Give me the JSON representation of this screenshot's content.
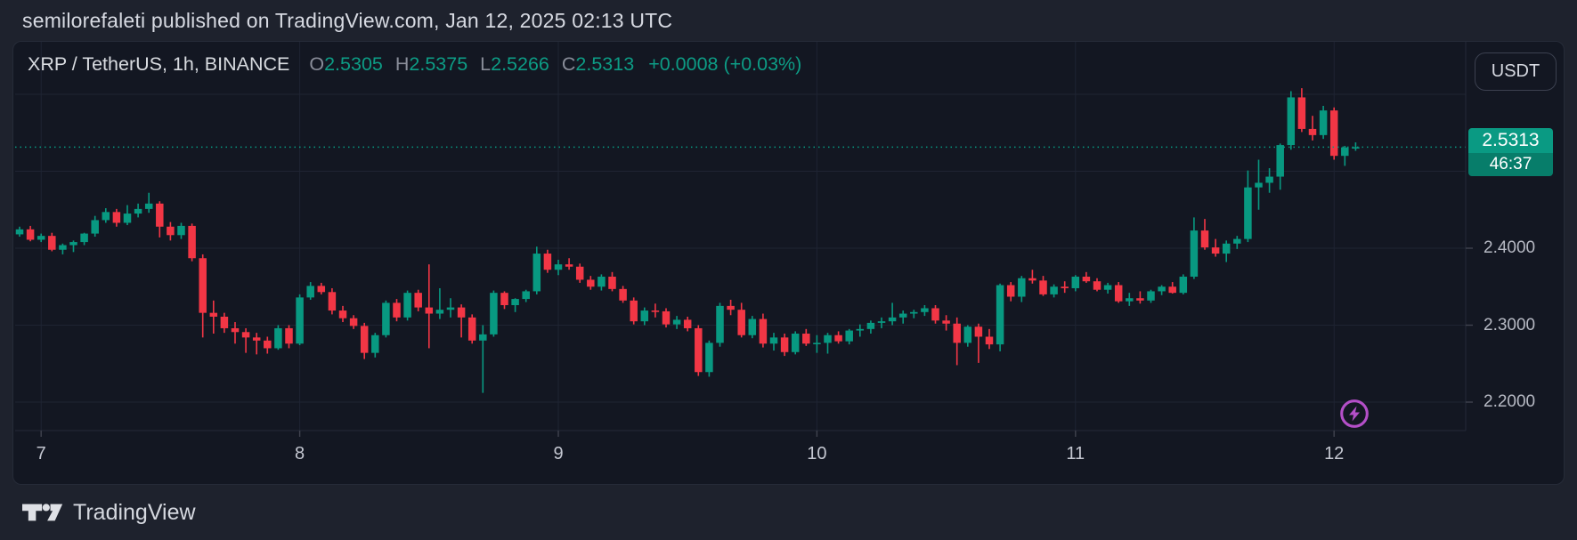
{
  "page": {
    "published_line": "semilorefaleti published on TradingView.com, Jan 12, 2025 02:13 UTC"
  },
  "chart": {
    "symbol_title": "XRP / TetherUS, 1h, BINANCE",
    "ohlc": {
      "o_label": "O",
      "o": "2.5305",
      "h_label": "H",
      "h": "2.5375",
      "l_label": "L",
      "l": "2.5266",
      "c_label": "C",
      "c": "2.5313",
      "change": "+0.0008 (+0.03%)"
    },
    "currency_button": "USDT",
    "badge": {
      "price": "2.5313",
      "countdown": "46:37"
    }
  },
  "footer": {
    "brand": "TradingView"
  },
  "colors": {
    "page_bg": "#1e222d",
    "chart_bg": "#131722",
    "up": "#089981",
    "down": "#f23645",
    "grid": "#1f2433",
    "dotted_price_line": "#089981",
    "badge_price_bg": "#0a9a83",
    "badge_countdown_bg": "#077d6a",
    "purple_icon": "#b44fc8",
    "axis_text": "#b6b9c3"
  },
  "chart_data": {
    "type": "candlestick",
    "title": "XRP / TetherUS, 1h, BINANCE",
    "exchange": "BINANCE",
    "interval": "1h",
    "last_price": 2.5313,
    "countdown": "46:37",
    "grid": true,
    "ylim": [
      2.19,
      2.63
    ],
    "y_ticks": [
      "2.4000",
      "2.3000",
      "2.2000"
    ],
    "y_tick_values": [
      2.4,
      2.3,
      2.2
    ],
    "x_axis_day_labels": [
      "7",
      "8",
      "9",
      "10",
      "11",
      "12"
    ],
    "day_start_indices": [
      2,
      26,
      50,
      74,
      98,
      122
    ],
    "candles": [
      [
        2.418,
        2.428,
        2.415,
        2.4245
      ],
      [
        2.4245,
        2.429,
        2.409,
        2.411
      ],
      [
        2.411,
        2.419,
        2.408,
        2.416
      ],
      [
        2.416,
        2.42,
        2.396,
        2.398
      ],
      [
        2.398,
        2.406,
        2.392,
        2.404
      ],
      [
        2.404,
        2.41,
        2.395,
        2.408
      ],
      [
        2.408,
        2.42,
        2.404,
        2.419
      ],
      [
        2.419,
        2.442,
        2.415,
        2.4365
      ],
      [
        2.4365,
        2.452,
        2.433,
        2.447
      ],
      [
        2.447,
        2.451,
        2.428,
        2.433
      ],
      [
        2.433,
        2.456,
        2.43,
        2.445
      ],
      [
        2.445,
        2.458,
        2.44,
        2.451
      ],
      [
        2.451,
        2.472,
        2.446,
        2.458
      ],
      [
        2.458,
        2.461,
        2.414,
        2.428
      ],
      [
        2.428,
        2.434,
        2.41,
        2.417
      ],
      [
        2.417,
        2.433,
        2.412,
        2.429
      ],
      [
        2.429,
        2.432,
        2.383,
        2.387
      ],
      [
        2.387,
        2.392,
        2.284,
        2.316
      ],
      [
        2.316,
        2.332,
        2.289,
        2.311
      ],
      [
        2.311,
        2.316,
        2.29,
        2.296
      ],
      [
        2.296,
        2.304,
        2.276,
        2.291
      ],
      [
        2.291,
        2.296,
        2.264,
        2.284
      ],
      [
        2.284,
        2.29,
        2.262,
        2.28
      ],
      [
        2.28,
        2.285,
        2.263,
        2.27
      ],
      [
        2.27,
        2.3,
        2.268,
        2.296
      ],
      [
        2.296,
        2.3,
        2.27,
        2.276
      ],
      [
        2.276,
        2.34,
        2.274,
        2.336
      ],
      [
        2.336,
        2.356,
        2.333,
        2.351
      ],
      [
        2.351,
        2.355,
        2.34,
        2.343
      ],
      [
        2.343,
        2.348,
        2.314,
        2.319
      ],
      [
        2.319,
        2.325,
        2.304,
        2.309
      ],
      [
        2.309,
        2.313,
        2.295,
        2.299
      ],
      [
        2.299,
        2.303,
        2.256,
        2.264
      ],
      [
        2.264,
        2.29,
        2.258,
        2.287
      ],
      [
        2.287,
        2.332,
        2.284,
        2.329
      ],
      [
        2.329,
        2.334,
        2.305,
        2.31
      ],
      [
        2.31,
        2.345,
        2.306,
        2.342
      ],
      [
        2.342,
        2.346,
        2.318,
        2.323
      ],
      [
        2.323,
        2.379,
        2.27,
        2.315
      ],
      [
        2.315,
        2.348,
        2.308,
        2.32
      ],
      [
        2.32,
        2.335,
        2.31,
        2.323
      ],
      [
        2.323,
        2.327,
        2.284,
        2.31
      ],
      [
        2.31,
        2.314,
        2.276,
        2.28
      ],
      [
        2.28,
        2.3,
        2.212,
        2.288
      ],
      [
        2.288,
        2.345,
        2.285,
        2.342
      ],
      [
        2.342,
        2.344,
        2.321,
        2.326
      ],
      [
        2.326,
        2.335,
        2.317,
        2.334
      ],
      [
        2.334,
        2.346,
        2.33,
        2.344
      ],
      [
        2.344,
        2.402,
        2.34,
        2.393
      ],
      [
        2.393,
        2.398,
        2.368,
        2.372
      ],
      [
        2.372,
        2.385,
        2.365,
        2.379
      ],
      [
        2.379,
        2.387,
        2.372,
        2.376
      ],
      [
        2.376,
        2.38,
        2.355,
        2.359
      ],
      [
        2.359,
        2.364,
        2.346,
        2.35
      ],
      [
        2.35,
        2.366,
        2.345,
        2.363
      ],
      [
        2.363,
        2.369,
        2.344,
        2.347
      ],
      [
        2.347,
        2.351,
        2.329,
        2.332
      ],
      [
        2.332,
        2.336,
        2.301,
        2.305
      ],
      [
        2.305,
        2.323,
        2.3,
        2.319
      ],
      [
        2.319,
        2.328,
        2.31,
        2.318
      ],
      [
        2.318,
        2.322,
        2.297,
        2.301
      ],
      [
        2.301,
        2.312,
        2.295,
        2.307
      ],
      [
        2.307,
        2.311,
        2.292,
        2.296
      ],
      [
        2.296,
        2.3,
        2.234,
        2.239
      ],
      [
        2.239,
        2.28,
        2.233,
        2.277
      ],
      [
        2.277,
        2.329,
        2.272,
        2.325
      ],
      [
        2.325,
        2.333,
        2.313,
        2.32
      ],
      [
        2.32,
        2.329,
        2.284,
        2.287
      ],
      [
        2.287,
        2.312,
        2.283,
        2.308
      ],
      [
        2.308,
        2.315,
        2.271,
        2.276
      ],
      [
        2.276,
        2.29,
        2.267,
        2.284
      ],
      [
        2.284,
        2.289,
        2.26,
        2.265
      ],
      [
        2.265,
        2.292,
        2.262,
        2.289
      ],
      [
        2.289,
        2.295,
        2.273,
        2.276
      ],
      [
        2.276,
        2.287,
        2.264,
        2.277
      ],
      [
        2.277,
        2.29,
        2.263,
        2.287
      ],
      [
        2.287,
        2.292,
        2.276,
        2.279
      ],
      [
        2.279,
        2.295,
        2.275,
        2.293
      ],
      [
        2.293,
        2.301,
        2.285,
        2.295
      ],
      [
        2.295,
        2.306,
        2.289,
        2.303
      ],
      [
        2.303,
        2.31,
        2.296,
        2.305
      ],
      [
        2.305,
        2.329,
        2.3,
        2.31
      ],
      [
        2.31,
        2.319,
        2.302,
        2.315
      ],
      [
        2.315,
        2.32,
        2.309,
        2.317
      ],
      [
        2.317,
        2.326,
        2.312,
        2.322
      ],
      [
        2.322,
        2.326,
        2.302,
        2.306
      ],
      [
        2.306,
        2.313,
        2.293,
        2.302
      ],
      [
        2.302,
        2.31,
        2.248,
        2.277
      ],
      [
        2.277,
        2.3,
        2.272,
        2.298
      ],
      [
        2.298,
        2.302,
        2.251,
        2.285
      ],
      [
        2.285,
        2.295,
        2.269,
        2.275
      ],
      [
        2.275,
        2.354,
        2.266,
        2.352
      ],
      [
        2.352,
        2.356,
        2.331,
        2.337
      ],
      [
        2.337,
        2.364,
        2.33,
        2.361
      ],
      [
        2.361,
        2.372,
        2.354,
        2.358
      ],
      [
        2.358,
        2.364,
        2.338,
        2.34
      ],
      [
        2.34,
        2.353,
        2.336,
        2.35
      ],
      [
        2.35,
        2.357,
        2.342,
        2.348
      ],
      [
        2.348,
        2.365,
        2.344,
        2.363
      ],
      [
        2.363,
        2.369,
        2.355,
        2.357
      ],
      [
        2.357,
        2.361,
        2.344,
        2.346
      ],
      [
        2.346,
        2.355,
        2.341,
        2.352
      ],
      [
        2.352,
        2.356,
        2.329,
        2.331
      ],
      [
        2.331,
        2.342,
        2.325,
        2.335
      ],
      [
        2.335,
        2.344,
        2.328,
        2.332
      ],
      [
        2.332,
        2.346,
        2.329,
        2.344
      ],
      [
        2.344,
        2.352,
        2.339,
        2.35
      ],
      [
        2.35,
        2.356,
        2.341,
        2.342
      ],
      [
        2.342,
        2.366,
        2.34,
        2.363
      ],
      [
        2.363,
        2.44,
        2.36,
        2.423
      ],
      [
        2.423,
        2.438,
        2.398,
        2.401
      ],
      [
        2.401,
        2.412,
        2.389,
        2.393
      ],
      [
        2.393,
        2.41,
        2.382,
        2.406
      ],
      [
        2.406,
        2.416,
        2.399,
        2.412
      ],
      [
        2.412,
        2.501,
        2.408,
        2.479
      ],
      [
        2.479,
        2.515,
        2.45,
        2.485
      ],
      [
        2.485,
        2.504,
        2.472,
        2.493
      ],
      [
        2.493,
        2.536,
        2.476,
        2.534
      ],
      [
        2.534,
        2.604,
        2.528,
        2.596
      ],
      [
        2.596,
        2.608,
        2.551,
        2.555
      ],
      [
        2.555,
        2.572,
        2.54,
        2.547
      ],
      [
        2.547,
        2.585,
        2.542,
        2.579
      ],
      [
        2.579,
        2.583,
        2.515,
        2.52
      ],
      [
        2.52,
        2.533,
        2.507,
        2.531
      ],
      [
        2.5305,
        2.5375,
        2.5266,
        2.5313
      ]
    ]
  }
}
